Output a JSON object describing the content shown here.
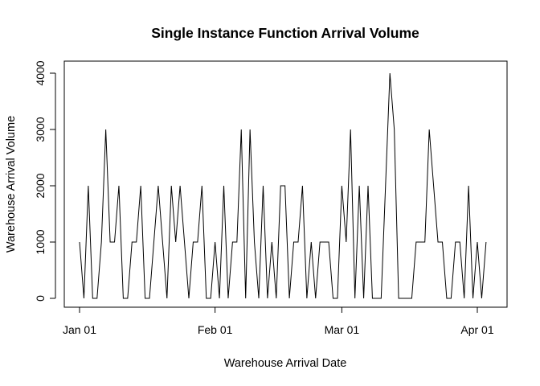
{
  "chart_data": {
    "type": "line",
    "title": "Single Instance Function Arrival Volume",
    "xlabel": "Warehouse Arrival Date",
    "ylabel": "Warehouse Arrival Volume",
    "x_ticks": [
      "Jan 01",
      "Feb 01",
      "Mar 01",
      "Apr 01"
    ],
    "y_ticks": [
      "0",
      "1000",
      "2000",
      "3000",
      "4000"
    ],
    "ylim": [
      0,
      4000
    ],
    "x_start": "2024-01-01",
    "x_end": "2024-04-03",
    "grid": false,
    "series": [
      {
        "values": [
          1000,
          0,
          2000,
          0,
          0,
          1000,
          3000,
          1000,
          1000,
          2000,
          0,
          0,
          1000,
          1000,
          2000,
          0,
          0,
          1000,
          2000,
          1000,
          0,
          2000,
          1000,
          2000,
          1000,
          0,
          1000,
          1000,
          2000,
          0,
          0,
          1000,
          0,
          2000,
          0,
          1000,
          1000,
          3000,
          0,
          3000,
          1000,
          0,
          2000,
          0,
          1000,
          0,
          2000,
          2000,
          0,
          1000,
          1000,
          2000,
          0,
          1000,
          0,
          1000,
          1000,
          1000,
          0,
          0,
          2000,
          1000,
          3000,
          0,
          2000,
          0,
          2000,
          0,
          0,
          0,
          2000,
          4000,
          3000,
          0,
          0,
          0,
          0,
          1000,
          1000,
          1000,
          3000,
          2000,
          1000,
          1000,
          0,
          0,
          1000,
          1000,
          0,
          2000,
          0,
          1000,
          0,
          1000
        ]
      }
    ]
  }
}
